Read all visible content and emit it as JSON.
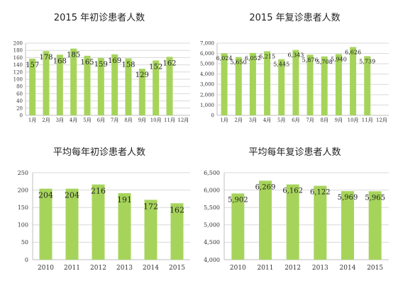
{
  "chart_data": [
    {
      "type": "bar",
      "title": "2015 年初诊患者人数",
      "categories": [
        "1月",
        "2月",
        "3月",
        "4月",
        "5月",
        "6月",
        "7月",
        "8月",
        "9月",
        "10月",
        "11月",
        "12月"
      ],
      "values": [
        157,
        178,
        168,
        185,
        165,
        159,
        169,
        158,
        129,
        152,
        162,
        null
      ],
      "value_labels": [
        "157",
        "178",
        "168",
        "185",
        "165",
        "159",
        "169",
        "158",
        "129",
        "152",
        "162",
        ""
      ],
      "ylim": [
        0,
        200
      ],
      "yticks": [
        "0",
        "20",
        "40",
        "60",
        "80",
        "100",
        "120",
        "140",
        "160",
        "180",
        "200"
      ],
      "xlabel": "",
      "ylabel": "",
      "grid": true,
      "legend": "none",
      "bar_color": "#a6d45a",
      "grid_color": "#d9d9d9"
    },
    {
      "type": "bar",
      "title": "2015 年复诊患者人数",
      "categories": [
        "1月",
        "2月",
        "3月",
        "4月",
        "5月",
        "6月",
        "7月",
        "8月",
        "9月",
        "10月",
        "11月",
        "12月"
      ],
      "values": [
        6024,
        5650,
        6052,
        6215,
        5445,
        6343,
        5876,
        5708,
        5940,
        6626,
        5739,
        null
      ],
      "value_labels": [
        "6,024",
        "5,650",
        "6,052",
        "6,215",
        "5,445",
        "6,343",
        "5,876",
        "5,708",
        "5,940",
        "6,626",
        "5,739",
        ""
      ],
      "ylim": [
        0,
        7000
      ],
      "yticks": [
        "0",
        "1,000",
        "2,000",
        "3,000",
        "4,000",
        "5,000",
        "6,000",
        "7,000"
      ],
      "xlabel": "",
      "ylabel": "",
      "grid": true,
      "legend": "none",
      "bar_color": "#a6d45a",
      "grid_color": "#d9d9d9"
    },
    {
      "type": "bar",
      "title": "平均每年初诊患者人数",
      "categories": [
        "2010",
        "2011",
        "2012",
        "2013",
        "2014",
        "2015"
      ],
      "values": [
        204,
        204,
        216,
        191,
        172,
        162
      ],
      "value_labels": [
        "204",
        "204",
        "216",
        "191",
        "172",
        "162"
      ],
      "ylim": [
        0,
        250
      ],
      "yticks": [
        "0",
        "50",
        "100",
        "150",
        "200",
        "250"
      ],
      "xlabel": "",
      "ylabel": "",
      "grid": true,
      "legend": "none",
      "bar_color": "#a6d45a",
      "grid_color": "#d9d9d9"
    },
    {
      "type": "bar",
      "title": "平均每年复诊患者人数",
      "categories": [
        "2010",
        "2011",
        "2012",
        "2013",
        "2014",
        "2015"
      ],
      "values": [
        5902,
        6269,
        6162,
        6122,
        5969,
        5965
      ],
      "value_labels": [
        "5,902",
        "6,269",
        "6,162",
        "6,122",
        "5,969",
        "5,965"
      ],
      "ylim": [
        4000,
        6500
      ],
      "yticks": [
        "4,000",
        "4,500",
        "5,000",
        "5,500",
        "6,000",
        "6,500"
      ],
      "xlabel": "",
      "ylabel": "",
      "grid": true,
      "legend": "none",
      "bar_color": "#a6d45a",
      "grid_color": "#d9d9d9"
    }
  ]
}
